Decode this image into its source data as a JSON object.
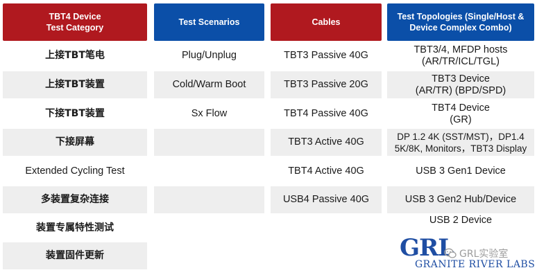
{
  "headers": {
    "category": "TBT4 Device\nTest Category",
    "scenarios": "Test Scenarios",
    "cables": "Cables",
    "topologies": "Test Topologies (Single/Host &\nDevice Complex Combo)"
  },
  "category": [
    "上接TBT笔电",
    "上接TBT装置",
    "下接TBT装置",
    "下接屏幕",
    "Extended Cycling Test",
    "多装置复杂连接",
    "装置专属特性测试",
    "装置固件更新"
  ],
  "scenarios": [
    "Plug/Unplug",
    "Cold/Warm Boot",
    "Sx Flow"
  ],
  "cables": [
    "TBT3 Passive 40G",
    "TBT3 Passive 20G",
    "TBT4 Passive 40G",
    "TBT3 Active 40G",
    "TBT4 Active 40G",
    "USB4 Passive 40G"
  ],
  "topologies": [
    "TBT3/4, MFDP hosts\n(AR/TR/ICL/TGL)",
    "TBT3 Device\n(AR/TR) (BPD/SPD)",
    "TBT4 Device\n(GR)",
    "DP 1.2 4K (SST/MST)，DP1.4\n5K/8K, Monitors，TBT3 Display",
    "USB 3 Gen1 Device",
    "USB 3 Gen2 Hub/Device",
    "USB 2 Device"
  ],
  "logo": {
    "mark": "GRL",
    "name": "GRANITE RIVER LABS"
  },
  "watermark": {
    "text": "GRL实验室",
    "icon": "wechat-icon"
  },
  "colors": {
    "header_red": "#b0191f",
    "header_blue": "#0b4fa8",
    "row_shade": "#eeeeee",
    "logo_blue": "#1f4ea3"
  }
}
